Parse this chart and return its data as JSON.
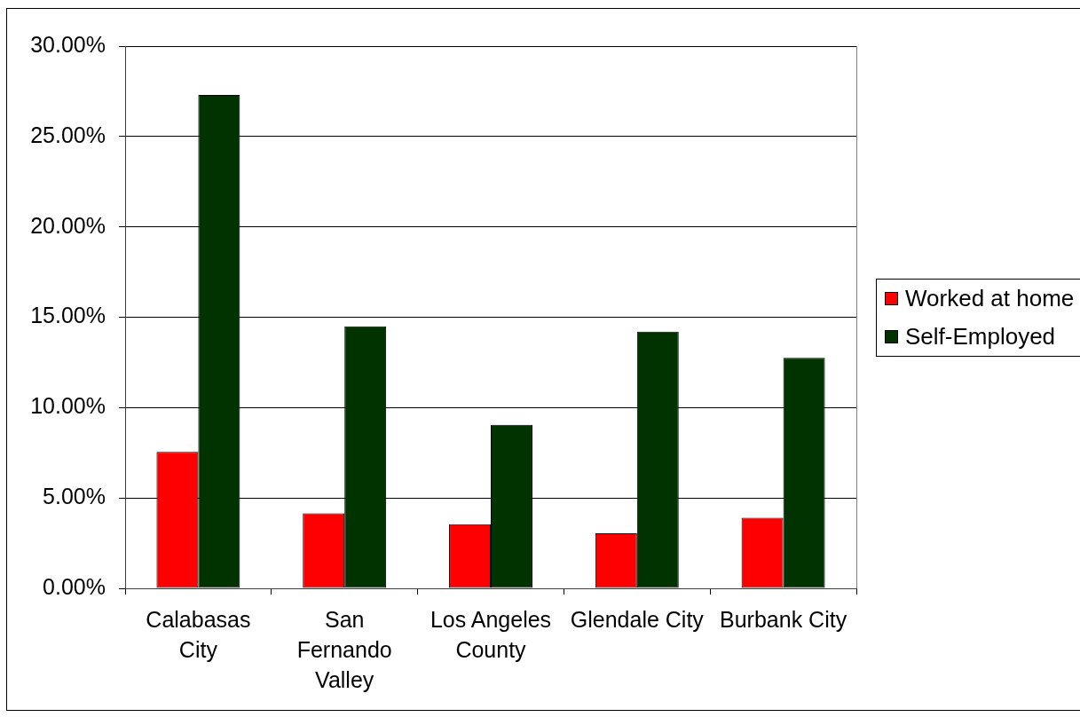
{
  "chart_data": {
    "type": "bar",
    "categories": [
      "Calabasas City",
      "San Fernando Valley",
      "Los Angeles County",
      "Glendale City",
      "Burbank City"
    ],
    "series": [
      {
        "name": "Worked at home",
        "color": "#ff0000",
        "values": [
          7.55,
          4.15,
          3.55,
          3.05,
          3.9
        ]
      },
      {
        "name": "Self-Employed",
        "color": "#003300",
        "values": [
          27.3,
          14.5,
          9.05,
          14.2,
          12.75
        ]
      }
    ],
    "ylim": [
      0,
      30
    ],
    "yticks": [
      {
        "value": 0,
        "label": "0.00%"
      },
      {
        "value": 5,
        "label": "5.00%"
      },
      {
        "value": 10,
        "label": "10.00%"
      },
      {
        "value": 15,
        "label": "15.00%"
      },
      {
        "value": 20,
        "label": "20.00%"
      },
      {
        "value": 25,
        "label": "25.00%"
      },
      {
        "value": 30,
        "label": "30.00%"
      }
    ],
    "grid": "y",
    "legend": "right"
  }
}
